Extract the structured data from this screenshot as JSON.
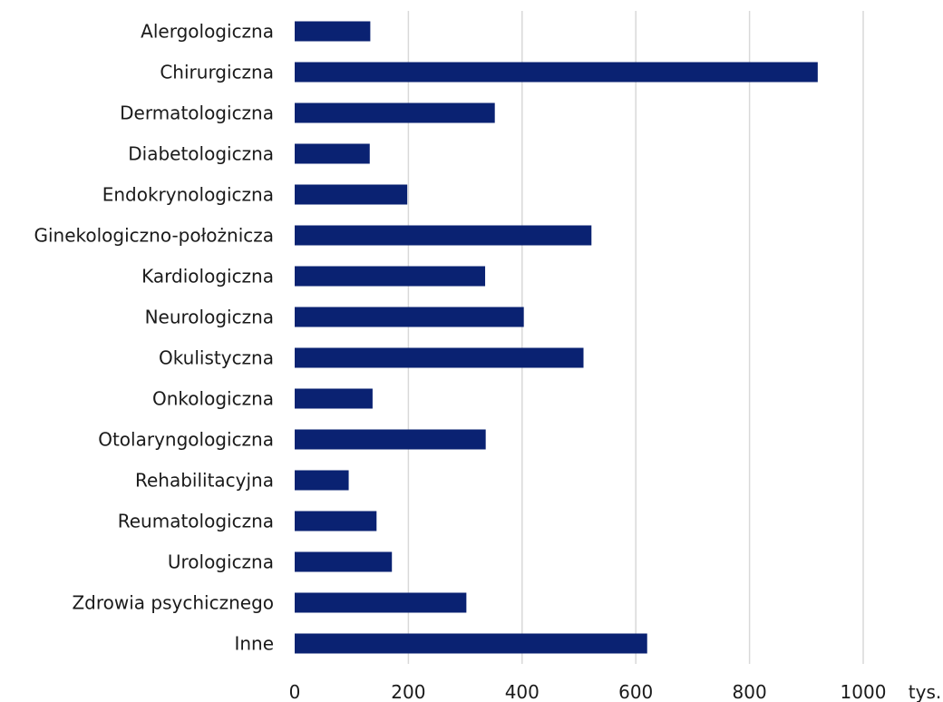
{
  "chart_data": {
    "type": "bar",
    "orientation": "horizontal",
    "categories": [
      "Alergologiczna",
      "Chirurgiczna",
      "Dermatologiczna",
      "Diabetologiczna",
      "Endokrynologiczna",
      "Ginekologiczno-położnicza",
      "Kardiologiczna",
      "Neurologiczna",
      "Okulistyczna",
      "Onkologiczna",
      "Otolaryngologiczna",
      "Rehabilitacyjna",
      "Reumatologiczna",
      "Urologiczna",
      "Zdrowia psychicznego",
      "Inne"
    ],
    "values": [
      133,
      920,
      352,
      132,
      198,
      522,
      335,
      403,
      508,
      137,
      336,
      95,
      144,
      171,
      302,
      620
    ],
    "xlim": [
      0,
      1000
    ],
    "xticks": [
      "0",
      "200",
      "400",
      "600",
      "800",
      "1000"
    ],
    "x_unit": "tys.",
    "bar_color": "#0a2272",
    "grid": true
  }
}
